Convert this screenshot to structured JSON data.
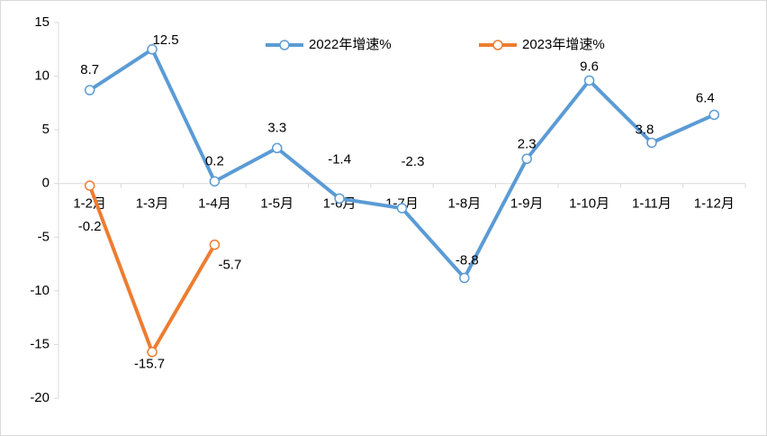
{
  "chart_data": {
    "type": "line",
    "categories": [
      "1-2月",
      "1-3月",
      "1-4月",
      "1-5月",
      "1-6月",
      "1-7月",
      "1-8月",
      "1-9月",
      "1-10月",
      "1-11月",
      "1-12月"
    ],
    "series": [
      {
        "name": "2022年增速%",
        "color": "#5b9bd5",
        "values": [
          8.7,
          12.5,
          0.2,
          3.3,
          -1.4,
          -2.3,
          -8.8,
          2.3,
          9.6,
          3.8,
          6.4
        ]
      },
      {
        "name": "2023年增速%",
        "color": "#ed7d31",
        "values": [
          -0.2,
          -15.7,
          -5.7,
          null,
          null,
          null,
          null,
          null,
          null,
          null,
          null
        ]
      }
    ],
    "ylim": [
      -20,
      15
    ],
    "yticks": [
      -20,
      -15,
      -10,
      -5,
      0,
      5,
      10,
      15
    ],
    "legend": "top"
  }
}
